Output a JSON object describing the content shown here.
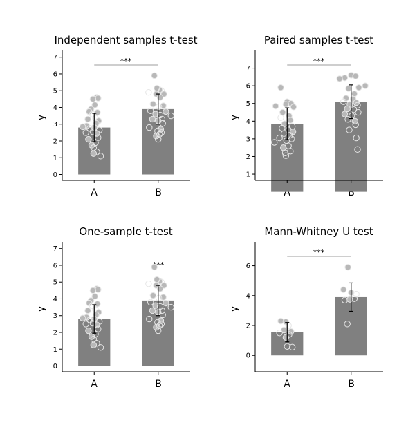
{
  "chart_data": [
    {
      "type": "bar",
      "title": "Independent samples t-test",
      "xlabel": "",
      "ylabel": "y",
      "categories": [
        "A",
        "B"
      ],
      "values": [
        2.8,
        3.9
      ],
      "errors": [
        0.85,
        0.9
      ],
      "ylim": [
        -0.35,
        7.4
      ],
      "yticks": [
        "0",
        "1",
        "2",
        "3",
        "4",
        "5",
        "6",
        "7"
      ],
      "significance": "***",
      "significance_bracket": true,
      "points": [
        [
          {
            "x": 0.04,
            "y": 4.6,
            "f": 1
          },
          {
            "x": 0.06,
            "y": 4.55,
            "f": 1
          },
          {
            "x": -0.02,
            "y": 4.5,
            "f": 1
          },
          {
            "x": 0.01,
            "y": 4.15,
            "f": 1
          },
          {
            "x": -0.05,
            "y": 3.9,
            "f": 1
          },
          {
            "x": -0.08,
            "y": 3.75,
            "f": 1
          },
          {
            "x": 0.05,
            "y": 3.7,
            "f": 1
          },
          {
            "x": -0.03,
            "y": 3.6,
            "f": 0
          },
          {
            "x": 0.02,
            "y": 3.35,
            "f": 0
          },
          {
            "x": -0.1,
            "y": 3.3,
            "f": 1
          },
          {
            "x": 0.07,
            "y": 3.2,
            "f": 1
          },
          {
            "x": 0.03,
            "y": 3.05,
            "f": 1
          },
          {
            "x": -0.12,
            "y": 2.9,
            "f": 1
          },
          {
            "x": -0.18,
            "y": 2.85,
            "f": 1
          },
          {
            "x": 0.0,
            "y": 2.8,
            "f": 1
          },
          {
            "x": -0.07,
            "y": 2.75,
            "f": 0
          },
          {
            "x": 0.08,
            "y": 2.65,
            "f": 0
          },
          {
            "x": -0.02,
            "y": 2.55,
            "f": 0
          },
          {
            "x": -0.13,
            "y": 2.5,
            "f": 0
          },
          {
            "x": 0.04,
            "y": 2.45,
            "f": 1
          },
          {
            "x": 0.06,
            "y": 2.2,
            "f": 0
          },
          {
            "x": -0.09,
            "y": 2.1,
            "f": 1
          },
          {
            "x": 0.02,
            "y": 1.9,
            "f": 0
          },
          {
            "x": -0.04,
            "y": 1.75,
            "f": 1
          },
          {
            "x": -0.01,
            "y": 1.6,
            "f": 0
          },
          {
            "x": 0.04,
            "y": 1.35,
            "f": 0
          },
          {
            "x": -0.01,
            "y": 1.25,
            "f": 1
          },
          {
            "x": 0.1,
            "y": 1.1,
            "f": 0
          }
        ],
        [
          {
            "x": -0.06,
            "y": 5.9,
            "f": 1
          },
          {
            "x": 0.02,
            "y": 5.05,
            "f": 1
          },
          {
            "x": -0.02,
            "y": 5.15,
            "f": 1
          },
          {
            "x": 0.05,
            "y": 5.0,
            "f": 0
          },
          {
            "x": -0.15,
            "y": 4.9,
            "f": 0
          },
          {
            "x": 0.09,
            "y": 4.8,
            "f": 1
          },
          {
            "x": -0.03,
            "y": 4.8,
            "f": 1
          },
          {
            "x": 0.03,
            "y": 4.6,
            "f": 1
          },
          {
            "x": -0.08,
            "y": 4.2,
            "f": 1
          },
          {
            "x": 0.08,
            "y": 4.1,
            "f": 1
          },
          {
            "x": 0.01,
            "y": 4.05,
            "f": 0
          },
          {
            "x": -0.12,
            "y": 3.8,
            "f": 0
          },
          {
            "x": 0.12,
            "y": 3.75,
            "f": 1
          },
          {
            "x": -0.04,
            "y": 3.6,
            "f": 1
          },
          {
            "x": 0.03,
            "y": 3.55,
            "f": 0
          },
          {
            "x": 0.2,
            "y": 3.5,
            "f": 0
          },
          {
            "x": -0.09,
            "y": 3.3,
            "f": 1
          },
          {
            "x": 0.06,
            "y": 3.3,
            "f": 0
          },
          {
            "x": 0.0,
            "y": 3.2,
            "f": 1
          },
          {
            "x": 0.07,
            "y": 3.05,
            "f": 0
          },
          {
            "x": -0.14,
            "y": 2.8,
            "f": 0
          },
          {
            "x": 0.04,
            "y": 2.7,
            "f": 1
          },
          {
            "x": -0.01,
            "y": 2.6,
            "f": 0
          },
          {
            "x": 0.05,
            "y": 2.5,
            "f": 0
          },
          {
            "x": -0.03,
            "y": 2.3,
            "f": 1
          },
          {
            "x": 0.0,
            "y": 2.1,
            "f": 0
          },
          {
            "x": 0.02,
            "y": 2.4,
            "f": 0
          }
        ]
      ]
    },
    {
      "type": "bar",
      "title": "Paired samples t-test",
      "xlabel": "",
      "ylabel": "y",
      "categories": [
        "A",
        "B"
      ],
      "values": [
        3.85,
        5.1
      ],
      "errors": [
        0.9,
        0.95
      ],
      "ylim": [
        0.65,
        8.0
      ],
      "yticks": [
        "1",
        "2",
        "3",
        "4",
        "5",
        "6",
        "7"
      ],
      "significance": "***",
      "significance_bracket": true,
      "points": [
        [
          {
            "x": -0.1,
            "y": 5.9,
            "f": 1
          },
          {
            "x": 0.0,
            "y": 5.1,
            "f": 1
          },
          {
            "x": -0.18,
            "y": 4.85,
            "f": 1
          },
          {
            "x": 0.06,
            "y": 5.0,
            "f": 1
          },
          {
            "x": -0.02,
            "y": 4.95,
            "f": 1
          },
          {
            "x": 0.1,
            "y": 4.8,
            "f": 1
          },
          {
            "x": -0.07,
            "y": 4.5,
            "f": 1
          },
          {
            "x": 0.03,
            "y": 4.3,
            "f": 1
          },
          {
            "x": -0.1,
            "y": 4.2,
            "f": 0
          },
          {
            "x": 0.05,
            "y": 4.05,
            "f": 1
          },
          {
            "x": -0.04,
            "y": 3.85,
            "f": 1
          },
          {
            "x": 0.08,
            "y": 3.7,
            "f": 0
          },
          {
            "x": -0.08,
            "y": 3.6,
            "f": 0
          },
          {
            "x": 0.02,
            "y": 3.5,
            "f": 0
          },
          {
            "x": 0.09,
            "y": 3.4,
            "f": 1
          },
          {
            "x": -0.05,
            "y": 3.3,
            "f": 0
          },
          {
            "x": 0.04,
            "y": 3.2,
            "f": 0
          },
          {
            "x": -0.12,
            "y": 3.05,
            "f": 0
          },
          {
            "x": 0.07,
            "y": 3.0,
            "f": 0
          },
          {
            "x": -0.01,
            "y": 2.9,
            "f": 0
          },
          {
            "x": -0.2,
            "y": 2.8,
            "f": 0
          },
          {
            "x": 0.02,
            "y": 2.6,
            "f": 0
          },
          {
            "x": -0.06,
            "y": 2.5,
            "f": 1
          },
          {
            "x": 0.05,
            "y": 2.3,
            "f": 0
          },
          {
            "x": -0.03,
            "y": 2.2,
            "f": 0
          },
          {
            "x": -0.02,
            "y": 2.05,
            "f": 0
          }
        ],
        [
          {
            "x": 0.0,
            "y": 6.6,
            "f": 1
          },
          {
            "x": 0.07,
            "y": 6.55,
            "f": 1
          },
          {
            "x": -0.1,
            "y": 6.45,
            "f": 1
          },
          {
            "x": -0.18,
            "y": 6.4,
            "f": 1
          },
          {
            "x": 0.22,
            "y": 6.0,
            "f": 1
          },
          {
            "x": 0.12,
            "y": 5.9,
            "f": 1
          },
          {
            "x": -0.04,
            "y": 5.85,
            "f": 1
          },
          {
            "x": 0.05,
            "y": 5.55,
            "f": 1
          },
          {
            "x": -0.08,
            "y": 5.3,
            "f": 1
          },
          {
            "x": 0.03,
            "y": 5.25,
            "f": 1
          },
          {
            "x": -0.12,
            "y": 5.1,
            "f": 0
          },
          {
            "x": 0.08,
            "y": 5.05,
            "f": 1
          },
          {
            "x": -0.02,
            "y": 4.95,
            "f": 1
          },
          {
            "x": 0.1,
            "y": 4.9,
            "f": 0
          },
          {
            "x": -0.06,
            "y": 4.7,
            "f": 1
          },
          {
            "x": 0.04,
            "y": 4.65,
            "f": 0
          },
          {
            "x": 0.11,
            "y": 4.5,
            "f": 0
          },
          {
            "x": -0.1,
            "y": 4.4,
            "f": 1
          },
          {
            "x": 0.01,
            "y": 4.3,
            "f": 0
          },
          {
            "x": -0.05,
            "y": 4.1,
            "f": 0
          },
          {
            "x": 0.06,
            "y": 4.0,
            "f": 1
          },
          {
            "x": 0.07,
            "y": 3.8,
            "f": 0
          },
          {
            "x": -0.03,
            "y": 3.5,
            "f": 0
          },
          {
            "x": 0.08,
            "y": 3.05,
            "f": 0
          },
          {
            "x": 0.1,
            "y": 2.4,
            "f": 0
          }
        ]
      ]
    },
    {
      "type": "bar",
      "title": "One-sample t-test",
      "xlabel": "",
      "ylabel": "y",
      "categories": [
        "A",
        "B"
      ],
      "values": [
        2.8,
        3.9
      ],
      "errors": [
        0.85,
        0.9
      ],
      "ylim": [
        -0.35,
        7.4
      ],
      "yticks": [
        "0",
        "1",
        "2",
        "3",
        "4",
        "5",
        "6",
        "7"
      ],
      "significance": "***",
      "significance_bracket": false,
      "points": [
        [
          {
            "x": 0.04,
            "y": 4.6,
            "f": 1
          },
          {
            "x": 0.06,
            "y": 4.55,
            "f": 1
          },
          {
            "x": -0.02,
            "y": 4.5,
            "f": 1
          },
          {
            "x": 0.01,
            "y": 4.15,
            "f": 1
          },
          {
            "x": -0.05,
            "y": 3.9,
            "f": 1
          },
          {
            "x": -0.08,
            "y": 3.75,
            "f": 1
          },
          {
            "x": 0.05,
            "y": 3.7,
            "f": 1
          },
          {
            "x": -0.03,
            "y": 3.6,
            "f": 0
          },
          {
            "x": 0.02,
            "y": 3.35,
            "f": 0
          },
          {
            "x": -0.1,
            "y": 3.3,
            "f": 1
          },
          {
            "x": 0.07,
            "y": 3.2,
            "f": 1
          },
          {
            "x": 0.03,
            "y": 3.05,
            "f": 1
          },
          {
            "x": -0.12,
            "y": 2.9,
            "f": 1
          },
          {
            "x": -0.18,
            "y": 2.85,
            "f": 1
          },
          {
            "x": 0.0,
            "y": 2.8,
            "f": 1
          },
          {
            "x": -0.07,
            "y": 2.75,
            "f": 0
          },
          {
            "x": 0.08,
            "y": 2.65,
            "f": 0
          },
          {
            "x": -0.02,
            "y": 2.55,
            "f": 0
          },
          {
            "x": -0.13,
            "y": 2.5,
            "f": 0
          },
          {
            "x": 0.04,
            "y": 2.45,
            "f": 1
          },
          {
            "x": 0.06,
            "y": 2.2,
            "f": 0
          },
          {
            "x": -0.09,
            "y": 2.1,
            "f": 1
          },
          {
            "x": 0.02,
            "y": 1.9,
            "f": 0
          },
          {
            "x": -0.04,
            "y": 1.75,
            "f": 1
          },
          {
            "x": -0.01,
            "y": 1.6,
            "f": 0
          },
          {
            "x": 0.04,
            "y": 1.35,
            "f": 0
          },
          {
            "x": -0.01,
            "y": 1.25,
            "f": 1
          },
          {
            "x": 0.1,
            "y": 1.1,
            "f": 0
          }
        ],
        [
          {
            "x": -0.06,
            "y": 5.9,
            "f": 1
          },
          {
            "x": 0.02,
            "y": 5.05,
            "f": 1
          },
          {
            "x": -0.02,
            "y": 5.15,
            "f": 1
          },
          {
            "x": 0.05,
            "y": 5.0,
            "f": 0
          },
          {
            "x": -0.15,
            "y": 4.9,
            "f": 0
          },
          {
            "x": 0.09,
            "y": 4.8,
            "f": 1
          },
          {
            "x": -0.03,
            "y": 4.8,
            "f": 1
          },
          {
            "x": 0.03,
            "y": 4.6,
            "f": 1
          },
          {
            "x": -0.08,
            "y": 4.2,
            "f": 1
          },
          {
            "x": 0.08,
            "y": 4.1,
            "f": 1
          },
          {
            "x": 0.01,
            "y": 4.05,
            "f": 0
          },
          {
            "x": -0.12,
            "y": 3.8,
            "f": 0
          },
          {
            "x": 0.12,
            "y": 3.75,
            "f": 1
          },
          {
            "x": -0.04,
            "y": 3.6,
            "f": 1
          },
          {
            "x": 0.03,
            "y": 3.55,
            "f": 0
          },
          {
            "x": 0.2,
            "y": 3.5,
            "f": 0
          },
          {
            "x": -0.09,
            "y": 3.3,
            "f": 1
          },
          {
            "x": 0.06,
            "y": 3.3,
            "f": 0
          },
          {
            "x": 0.0,
            "y": 3.2,
            "f": 1
          },
          {
            "x": 0.07,
            "y": 3.05,
            "f": 0
          },
          {
            "x": -0.14,
            "y": 2.8,
            "f": 0
          },
          {
            "x": 0.04,
            "y": 2.7,
            "f": 1
          },
          {
            "x": -0.01,
            "y": 2.6,
            "f": 0
          },
          {
            "x": 0.05,
            "y": 2.5,
            "f": 0
          },
          {
            "x": -0.03,
            "y": 2.3,
            "f": 1
          },
          {
            "x": 0.0,
            "y": 2.1,
            "f": 0
          },
          {
            "x": 0.02,
            "y": 2.4,
            "f": 0
          }
        ]
      ]
    },
    {
      "type": "bar",
      "title": "Mann-Whitney U test",
      "xlabel": "",
      "ylabel": "y",
      "categories": [
        "A",
        "B"
      ],
      "values": [
        1.55,
        3.9
      ],
      "errors": [
        0.65,
        0.95
      ],
      "ylim": [
        -1.1,
        7.6
      ],
      "yticks": [
        "0",
        "2",
        "4",
        "6"
      ],
      "ytick_values": [
        0,
        2,
        4,
        6
      ],
      "significance": "***",
      "significance_bracket": true,
      "points": [
        [
          {
            "x": -0.1,
            "y": 2.3,
            "f": 1
          },
          {
            "x": -0.02,
            "y": 2.25,
            "f": 1
          },
          {
            "x": 0.02,
            "y": 2.0,
            "f": 0
          },
          {
            "x": -0.05,
            "y": 1.7,
            "f": 1
          },
          {
            "x": 0.06,
            "y": 1.6,
            "f": 1
          },
          {
            "x": -0.12,
            "y": 1.5,
            "f": 0
          },
          {
            "x": 0.03,
            "y": 1.4,
            "f": 0
          },
          {
            "x": -0.02,
            "y": 1.2,
            "f": 1
          },
          {
            "x": 0.0,
            "y": 0.6,
            "f": 0
          },
          {
            "x": 0.08,
            "y": 0.55,
            "f": 0
          }
        ],
        [
          {
            "x": -0.05,
            "y": 5.9,
            "f": 1
          },
          {
            "x": -0.12,
            "y": 4.4,
            "f": 1
          },
          {
            "x": 0.0,
            "y": 4.2,
            "f": 1
          },
          {
            "x": 0.08,
            "y": 4.1,
            "f": 0
          },
          {
            "x": 0.05,
            "y": 3.8,
            "f": 0
          },
          {
            "x": -0.1,
            "y": 3.7,
            "f": 0
          },
          {
            "x": -0.02,
            "y": 3.75,
            "f": 1
          },
          {
            "x": -0.06,
            "y": 2.1,
            "f": 0
          }
        ]
      ]
    }
  ],
  "colors": {
    "bar": "#808080",
    "point_fill": "#b8b8b8",
    "point_edge": "#e6e6e6",
    "axis": "#000000",
    "bracket": "#b0b0b0"
  }
}
